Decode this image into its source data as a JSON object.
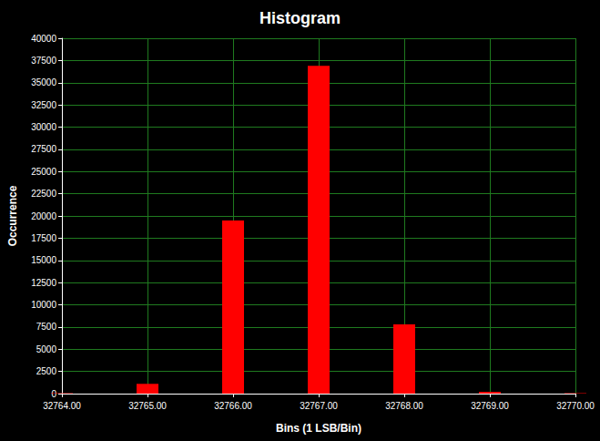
{
  "chart_data": {
    "type": "bar",
    "title": "Histogram",
    "x_label": "Bins (1 LSB/Bin)",
    "y_label": "Occurrence",
    "x": [
      32764,
      32765,
      32766,
      32767,
      32768,
      32769,
      32770
    ],
    "values": [
      50,
      1100,
      19500,
      36900,
      7800,
      200,
      50
    ],
    "color": "#ff0000",
    "xlim": [
      32764,
      32770
    ],
    "xticks": [
      {
        "value": 32764,
        "label": "32764.00"
      },
      {
        "value": 32765,
        "label": "32765.00"
      },
      {
        "value": 32766,
        "label": "32766.00"
      },
      {
        "value": 32767,
        "label": "32767.00"
      },
      {
        "value": 32768,
        "label": "32768.00"
      },
      {
        "value": 32769,
        "label": "32769.00"
      },
      {
        "value": 32770,
        "label": "32770.00"
      }
    ],
    "ylim": [
      0,
      40000
    ],
    "yticks": [
      0,
      2500,
      5000,
      7500,
      10000,
      12500,
      15000,
      17500,
      20000,
      22500,
      25000,
      27500,
      30000,
      32500,
      35000,
      37500,
      40000
    ],
    "grid": true
  }
}
